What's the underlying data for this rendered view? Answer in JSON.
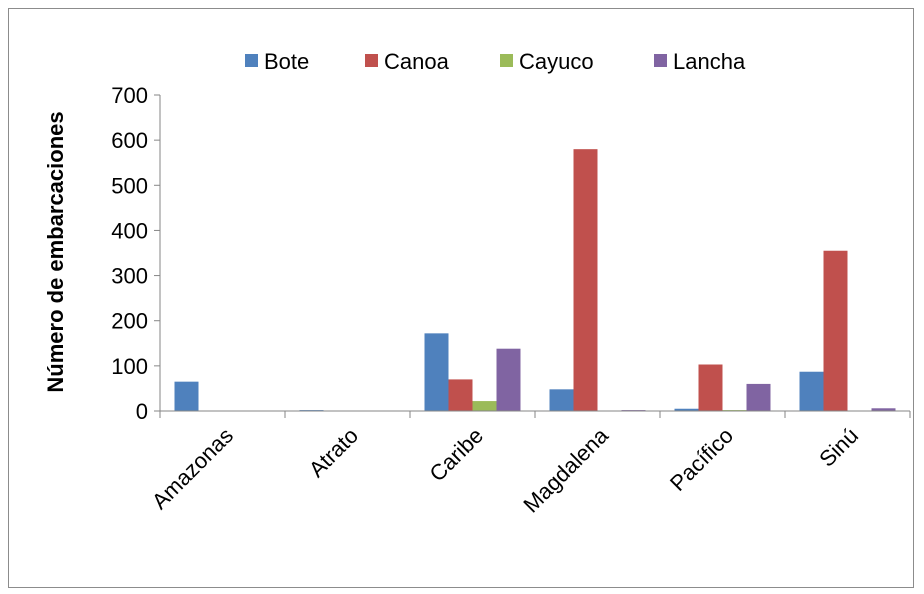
{
  "chart_data": {
    "type": "bar",
    "title": "",
    "xlabel": "",
    "ylabel": "Número de embarcaciones",
    "ylim": [
      0,
      700
    ],
    "yticks": [
      0,
      100,
      200,
      300,
      400,
      500,
      600,
      700
    ],
    "grid": false,
    "legend_position": "top",
    "categories": [
      "Amazonas",
      "Atrato",
      "Caribe",
      "Magdalena",
      "Pacífico",
      "Sinú"
    ],
    "series": [
      {
        "name": "Bote",
        "color": "#4F81BD",
        "values": [
          65,
          2,
          172,
          48,
          5,
          87
        ]
      },
      {
        "name": "Canoa",
        "color": "#C0504D",
        "values": [
          0,
          0,
          70,
          580,
          103,
          355
        ]
      },
      {
        "name": "Cayuco",
        "color": "#9BBB59",
        "values": [
          0,
          0,
          22,
          0,
          2,
          0
        ]
      },
      {
        "name": "Lancha",
        "color": "#8064A2",
        "values": [
          0,
          0,
          138,
          2,
          60,
          6
        ]
      }
    ]
  }
}
